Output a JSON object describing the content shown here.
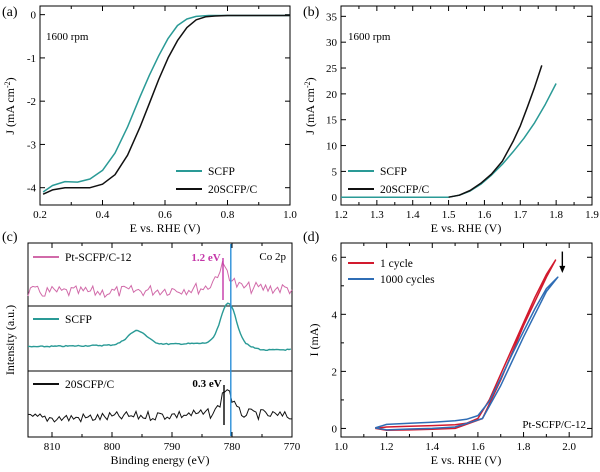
{
  "figure": {
    "colors": {
      "teal": "#2a9a96",
      "black": "#111111",
      "pink": "#d16aa9",
      "magenta": "#c436a8",
      "blue": "#2b8fd8",
      "red": "#d21a2e",
      "navy": "#2f6db5"
    }
  },
  "chart_data": [
    {
      "panel": "(a)",
      "type": "line",
      "annotation": "1600 rpm",
      "xlabel": "E vs. RHE (V)",
      "ylabel": "J (mA cm",
      "ylabel_sup": "-2",
      "ylabel_end": ")",
      "xlim": [
        0.2,
        1.0
      ],
      "ylim": [
        -4.4,
        0.2
      ],
      "xticks": [
        0.2,
        0.4,
        0.6,
        0.8,
        1.0
      ],
      "xtick_labels": [
        "0.2",
        "0.4",
        "0.6",
        "0.8",
        "1.0"
      ],
      "yticks": [
        0,
        -1,
        -2,
        -3,
        -4
      ],
      "ytick_labels": [
        "0",
        "-1",
        "-2",
        "-3",
        "-4"
      ],
      "legend_position": "bottom-right",
      "series": [
        {
          "name": "SCFP",
          "color": "#2a9a96",
          "x": [
            0.21,
            0.24,
            0.28,
            0.32,
            0.36,
            0.4,
            0.44,
            0.48,
            0.52,
            0.55,
            0.58,
            0.61,
            0.64,
            0.67,
            0.7,
            0.74,
            0.8,
            0.9,
            1.0
          ],
          "y": [
            -4.1,
            -3.95,
            -3.86,
            -3.87,
            -3.8,
            -3.6,
            -3.2,
            -2.6,
            -1.9,
            -1.4,
            -0.95,
            -0.55,
            -0.25,
            -0.1,
            -0.04,
            -0.02,
            -0.02,
            -0.02,
            -0.02
          ]
        },
        {
          "name": "20SCFP/C",
          "color": "#111111",
          "x": [
            0.21,
            0.24,
            0.28,
            0.32,
            0.36,
            0.4,
            0.44,
            0.48,
            0.52,
            0.55,
            0.58,
            0.61,
            0.64,
            0.67,
            0.7,
            0.73,
            0.76,
            0.8,
            0.9,
            1.0
          ],
          "y": [
            -4.15,
            -4.05,
            -4.0,
            -4.0,
            -4.0,
            -3.92,
            -3.7,
            -3.25,
            -2.6,
            -2.05,
            -1.5,
            -1.0,
            -0.6,
            -0.3,
            -0.12,
            -0.05,
            -0.03,
            -0.02,
            -0.02,
            -0.02
          ]
        }
      ]
    },
    {
      "panel": "(b)",
      "type": "line",
      "annotation": "1600 rpm",
      "xlabel": "E vs. RHE (V)",
      "ylabel": "J (mA cm",
      "ylabel_sup": "-2",
      "ylabel_end": ")",
      "xlim": [
        1.2,
        1.9
      ],
      "ylim": [
        -1.5,
        37
      ],
      "xticks": [
        1.2,
        1.3,
        1.4,
        1.5,
        1.6,
        1.7,
        1.8,
        1.9
      ],
      "xtick_labels": [
        "1.2",
        "1.3",
        "1.4",
        "1.5",
        "1.6",
        "1.7",
        "1.8",
        "1.9"
      ],
      "yticks": [
        0,
        5,
        10,
        15,
        20,
        25,
        30,
        35
      ],
      "ytick_labels": [
        "0",
        "5",
        "10",
        "15",
        "20",
        "25",
        "30",
        "35"
      ],
      "legend_position": "bottom-left",
      "series": [
        {
          "name": "SCFP",
          "color": "#2a9a96",
          "x": [
            1.5,
            1.53,
            1.56,
            1.59,
            1.62,
            1.65,
            1.68,
            1.71,
            1.74,
            1.77,
            1.8
          ],
          "y": [
            0.0,
            0.4,
            1.2,
            2.5,
            4.3,
            6.4,
            8.8,
            11.4,
            14.4,
            18.0,
            22.0
          ]
        },
        {
          "name": "20SCFP/C",
          "color": "#111111",
          "x": [
            1.5,
            1.53,
            1.56,
            1.59,
            1.62,
            1.65,
            1.68,
            1.7,
            1.72,
            1.74,
            1.76
          ],
          "y": [
            0.0,
            0.4,
            1.3,
            2.7,
            4.5,
            7.0,
            10.8,
            13.8,
            17.5,
            21.3,
            25.5
          ]
        }
      ]
    },
    {
      "panel": "(c)",
      "type": "line",
      "annotation": "Co 2p",
      "xlabel": "Binding energy (eV)",
      "ylabel": "Intensity (a.u.)",
      "xlim": [
        814,
        770
      ],
      "xticks": [
        810,
        800,
        790,
        780,
        770
      ],
      "xtick_labels": [
        "810",
        "800",
        "790",
        "780",
        "770"
      ],
      "reference_lines": [
        781.5,
        780.2
      ],
      "series": [
        {
          "name": "Pt-SCFP/C-12",
          "color": "#d16aa9",
          "peak_label": "1.2 eV"
        },
        {
          "name": "SCFP",
          "color": "#2a9a96"
        },
        {
          "name": "20SCFP/C",
          "color": "#111111",
          "peak_label": "0.3 eV"
        }
      ]
    },
    {
      "panel": "(d)",
      "type": "line",
      "annotation": "Pt-SCFP/C-12",
      "xlabel": "E vs. RHE (V)",
      "ylabel": "I (mA)",
      "xlim": [
        1.0,
        2.1
      ],
      "ylim": [
        -0.3,
        6.5
      ],
      "xticks": [
        1.0,
        1.2,
        1.4,
        1.6,
        1.8,
        2.0
      ],
      "xtick_labels": [
        "1.0",
        "1.2",
        "1.4",
        "1.6",
        "1.8",
        "2.0"
      ],
      "yticks": [
        0,
        2,
        4,
        6
      ],
      "ytick_labels": [
        "0",
        "2",
        "4",
        "6"
      ],
      "legend_position": "top-left",
      "series": [
        {
          "name": "1 cycle",
          "color": "#d21a2e",
          "fwd_x": [
            1.15,
            1.2,
            1.3,
            1.4,
            1.5,
            1.55,
            1.6,
            1.65,
            1.7,
            1.75,
            1.8,
            1.85,
            1.9,
            1.94
          ],
          "fwd_y": [
            0.0,
            0.05,
            0.08,
            0.1,
            0.13,
            0.18,
            0.35,
            1.0,
            1.9,
            2.8,
            3.7,
            4.6,
            5.4,
            5.9
          ],
          "rev_x": [
            1.94,
            1.9,
            1.8,
            1.7,
            1.62,
            1.5,
            1.4,
            1.3,
            1.2,
            1.15
          ],
          "rev_y": [
            5.9,
            5.3,
            3.6,
            1.7,
            0.35,
            0.0,
            -0.03,
            -0.05,
            -0.06,
            0.0
          ]
        },
        {
          "name": "1000 cycles",
          "color": "#2f6db5",
          "fwd_x": [
            1.15,
            1.2,
            1.3,
            1.4,
            1.5,
            1.55,
            1.6,
            1.65,
            1.7,
            1.75,
            1.8,
            1.85,
            1.9,
            1.95
          ],
          "fwd_y": [
            0.02,
            0.14,
            0.18,
            0.22,
            0.27,
            0.32,
            0.45,
            0.95,
            1.75,
            2.6,
            3.4,
            4.2,
            4.9,
            5.3
          ],
          "rev_x": [
            1.95,
            1.9,
            1.8,
            1.7,
            1.62,
            1.5,
            1.4,
            1.3,
            1.2,
            1.15
          ],
          "rev_y": [
            5.3,
            4.8,
            3.2,
            1.5,
            0.35,
            0.05,
            0.0,
            -0.02,
            -0.05,
            0.02
          ]
        }
      ]
    }
  ]
}
